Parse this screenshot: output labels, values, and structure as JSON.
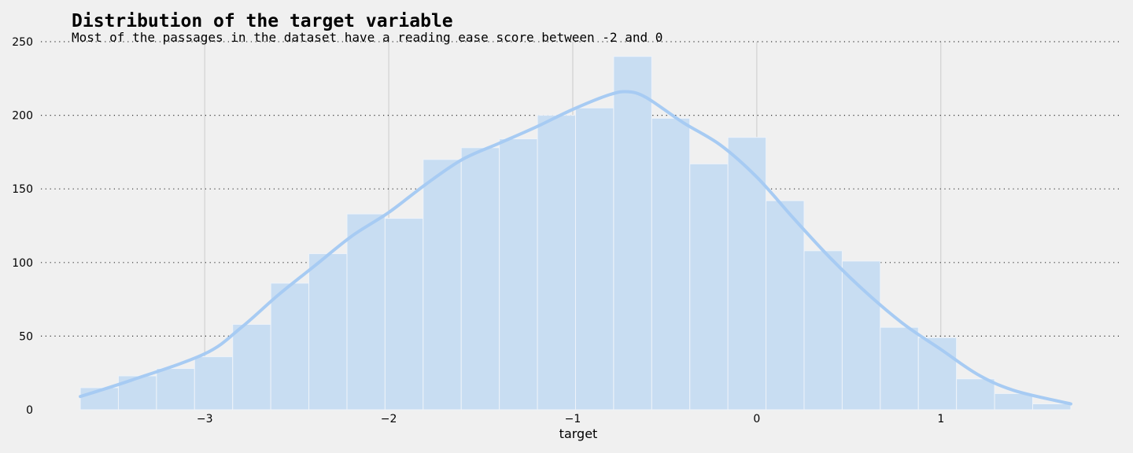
{
  "chart_data": {
    "type": "bar",
    "title": "Distribution of the target variable",
    "subtitle": "Most of the passages in the dataset have a reading ease score between -2 and 0",
    "xlabel": "target",
    "ylabel": "",
    "xlim": [
      -3.89,
      1.98
    ],
    "ylim": [
      0,
      250
    ],
    "xticks": [
      -3,
      -2,
      -1,
      0,
      1
    ],
    "xtick_labels": [
      "−3",
      "−2",
      "−1",
      "0",
      "1"
    ],
    "yticks": [
      0,
      50,
      100,
      150,
      200,
      250
    ],
    "ytick_labels": [
      "0",
      "50",
      "100",
      "150",
      "200",
      "250"
    ],
    "grid": {
      "y": "dotted",
      "x": "solid"
    },
    "bin_edges": [
      -3.676,
      -3.469,
      -3.262,
      -3.055,
      -2.848,
      -2.641,
      -2.434,
      -2.227,
      -2.02,
      -1.813,
      -1.606,
      -1.399,
      -1.192,
      -0.985,
      -0.778,
      -0.571,
      -0.364,
      -0.157,
      0.05,
      0.257,
      0.464,
      0.671,
      0.878,
      1.085,
      1.292,
      1.499,
      1.706
    ],
    "values": [
      15,
      23,
      28,
      36,
      58,
      86,
      106,
      133,
      130,
      170,
      178,
      184,
      200,
      205,
      240,
      198,
      167,
      185,
      142,
      108,
      101,
      56,
      49,
      21,
      11,
      4
    ],
    "kde": {
      "x": [
        -3.676,
        -3.4,
        -3.0,
        -2.8,
        -2.6,
        -2.4,
        -2.2,
        -2.0,
        -1.8,
        -1.6,
        -1.4,
        -1.2,
        -1.0,
        -0.8,
        -0.7,
        -0.6,
        -0.4,
        -0.2,
        0.0,
        0.2,
        0.4,
        0.6,
        0.8,
        1.0,
        1.2,
        1.4,
        1.706
      ],
      "y": [
        9,
        20,
        38,
        56,
        78,
        98,
        118,
        134,
        153,
        170,
        181,
        192,
        204,
        214,
        216,
        212,
        195,
        180,
        158,
        130,
        103,
        79,
        58,
        41,
        24,
        13,
        4
      ]
    },
    "colors": {
      "bar": "#c8ddf2",
      "bar_edge": "#eef3f9",
      "kde": "#a7cbf3",
      "background": "#f0f0f0",
      "grid_y": "#333333",
      "grid_x": "#cbcbcb"
    }
  }
}
